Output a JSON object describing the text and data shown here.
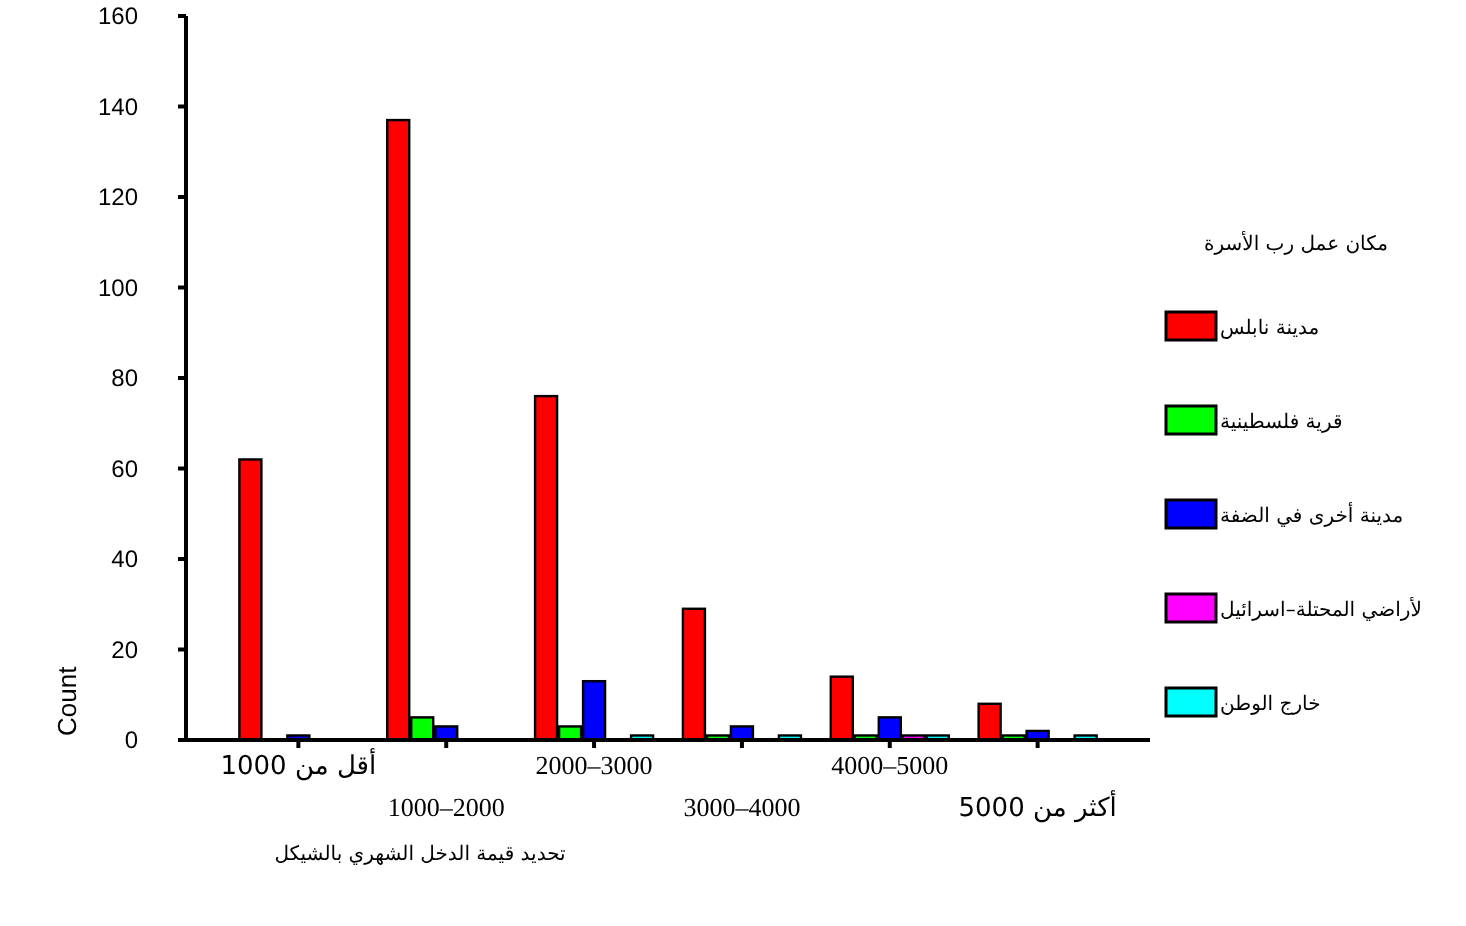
{
  "chart_data": {
    "type": "bar",
    "categories": [
      "أقل من 1000",
      "1000–2000",
      "2000–3000",
      "3000–4000",
      "4000–5000",
      "أكثر من 5000"
    ],
    "series": [
      {
        "name": "مدينة نابلس",
        "color": "#ff0000",
        "values": [
          62,
          137,
          76,
          29,
          14,
          8
        ]
      },
      {
        "name": "قرية فلسطينية",
        "color": "#00ff00",
        "values": [
          null,
          5,
          3,
          1,
          1,
          1
        ]
      },
      {
        "name": "مدينة أخرى في الضفة",
        "color": "#0000ff",
        "values": [
          1,
          3,
          13,
          3,
          5,
          2
        ]
      },
      {
        "name": "لأراضي المحتلة–اسرائيل",
        "color": "#ff00ff",
        "values": [
          null,
          null,
          null,
          null,
          1,
          null
        ]
      },
      {
        "name": "خارج الوطن",
        "color": "#00ffff",
        "values": [
          null,
          null,
          1,
          1,
          1,
          1
        ]
      }
    ],
    "xlabel": "تحديد قيمة الدخل الشهري بالشيكل",
    "ylabel": "Count",
    "legend_title": "مكان عمل رب الأسرة",
    "legend": "right",
    "ylim": [
      0,
      160
    ],
    "yticks": [
      0,
      20,
      40,
      60,
      80,
      100,
      120,
      140,
      160
    ]
  }
}
